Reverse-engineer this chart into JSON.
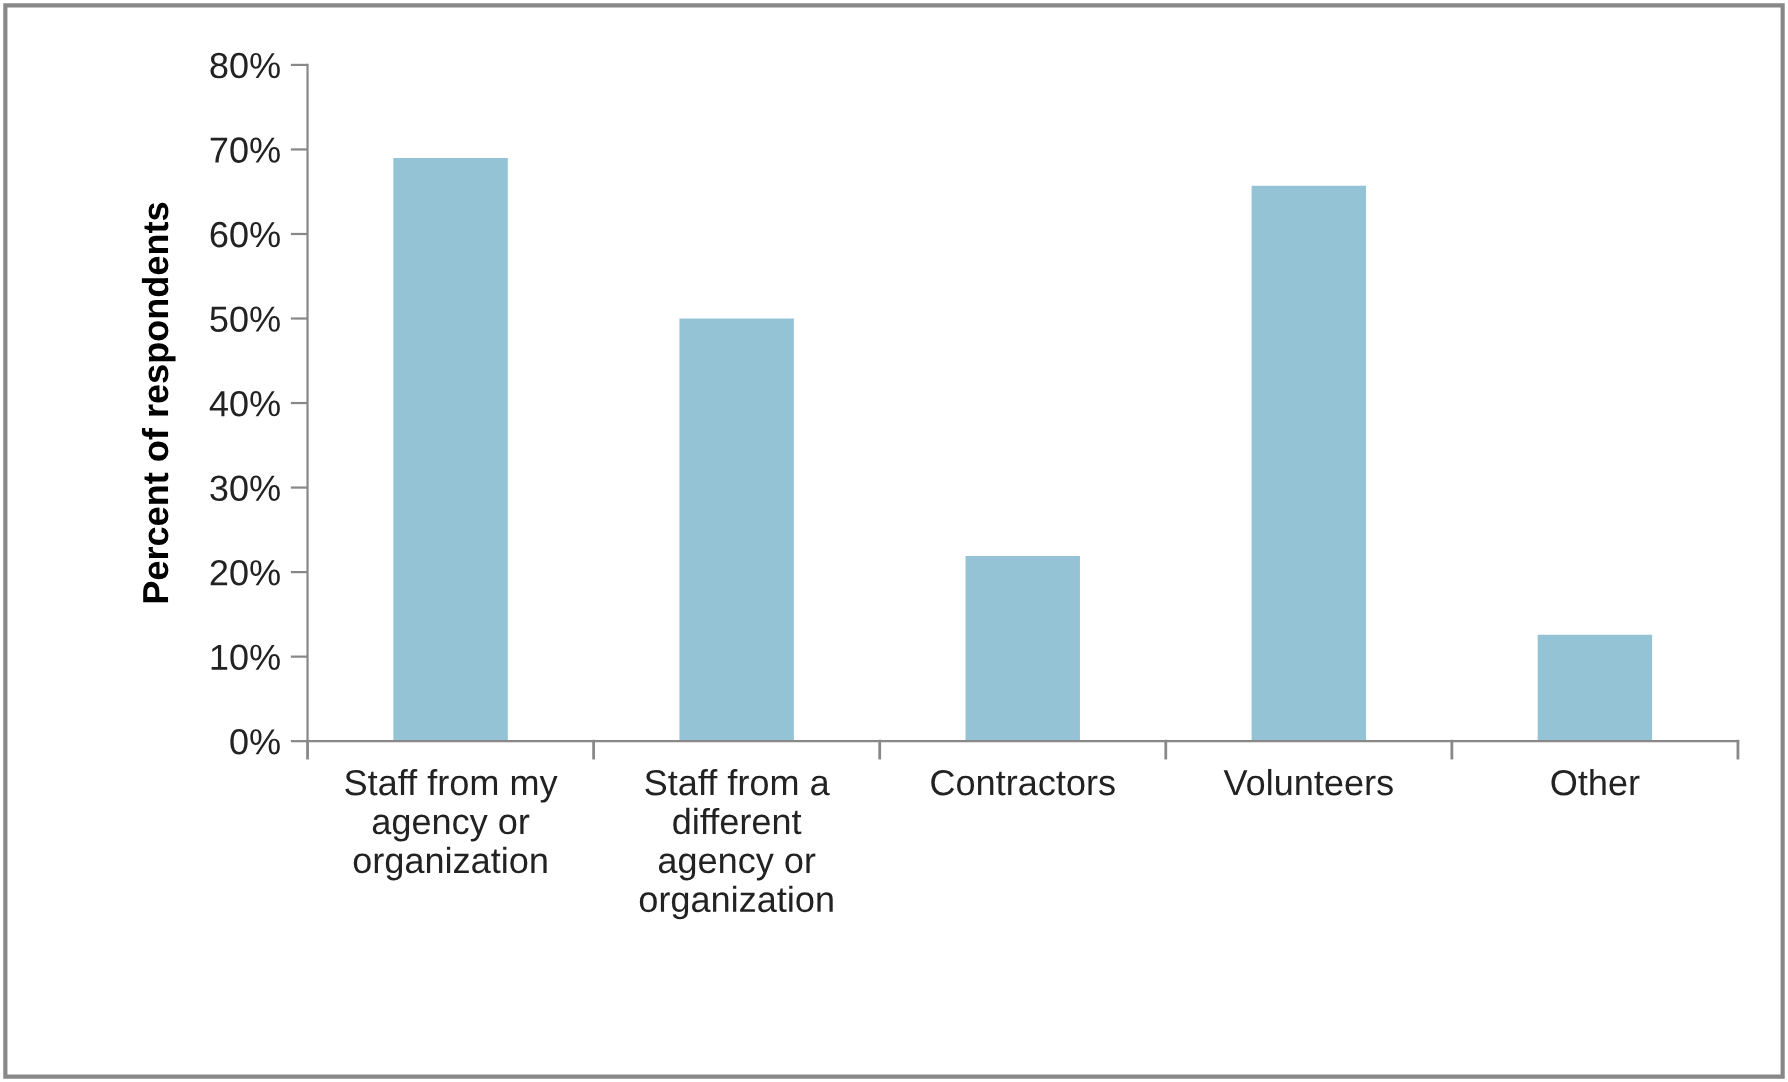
{
  "chart_data": {
    "type": "bar",
    "ylabel": "Percent of respondents",
    "categories": [
      "Staff from my\nagency or\norganization",
      "Staff from a\ndifferent\nagency or\norganization",
      "Contractors",
      "Volunteers",
      "Other"
    ],
    "values": [
      69,
      50,
      21.9,
      65.7,
      12.6
    ],
    "color": "#93c3d5",
    "ylim": [
      0,
      80
    ],
    "yticks": [
      {
        "value": 0,
        "label": "0%"
      },
      {
        "value": 10,
        "label": "10%"
      },
      {
        "value": 20,
        "label": "20%"
      },
      {
        "value": 30,
        "label": "30%"
      },
      {
        "value": 40,
        "label": "40%"
      },
      {
        "value": 50,
        "label": "50%"
      },
      {
        "value": 60,
        "label": "60%"
      },
      {
        "value": 70,
        "label": "70%"
      },
      {
        "value": 80,
        "label": "80%"
      }
    ],
    "grid": false
  }
}
